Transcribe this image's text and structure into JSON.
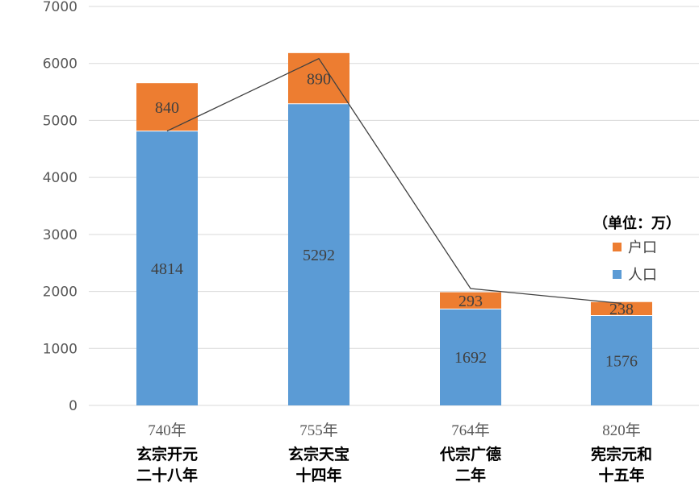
{
  "chart_data": {
    "type": "bar",
    "stacked": true,
    "categories": [
      {
        "year": "740年",
        "label_lines": [
          "玄宗开元",
          "二十八年"
        ]
      },
      {
        "year": "755年",
        "label_lines": [
          "玄宗天宝",
          "十四年"
        ]
      },
      {
        "year": "764年",
        "label_lines": [
          "代宗广德",
          "二年"
        ]
      },
      {
        "year": "820年",
        "label_lines": [
          "宪宗元和",
          "十五年"
        ]
      }
    ],
    "series": [
      {
        "name": "人口",
        "color": "#5b9bd5",
        "values": [
          4814,
          5292,
          1692,
          1576
        ]
      },
      {
        "name": "户口",
        "color": "#ed7d31",
        "values": [
          840,
          890,
          293,
          238
        ]
      }
    ],
    "line": {
      "color": "#404040",
      "values": [
        4814,
        6085,
        2050,
        1790
      ]
    },
    "ylim": [
      0,
      7000
    ],
    "yticks": [
      "0",
      "1000",
      "2000",
      "3000",
      "4000",
      "5000",
      "6000",
      "7000"
    ],
    "grid": true,
    "unit_note": "（单位：万）",
    "legend_position": "right"
  }
}
